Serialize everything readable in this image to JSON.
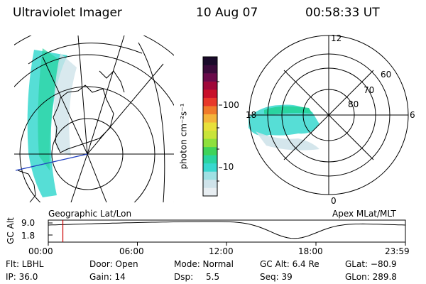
{
  "header": {
    "title": "Ultraviolet Imager",
    "date": "10 Aug 07",
    "time": "00:58:33 UT"
  },
  "panels": {
    "left_label": "Geographic Lat/Lon",
    "right_label": "Apex MLat/MLT",
    "polar_labels": [
      "12",
      "60",
      "70",
      "80",
      "18",
      "6",
      "0"
    ]
  },
  "colorbar": {
    "unit_label": "photon cm⁻²s⁻¹",
    "ticks": [
      "100",
      "10"
    ],
    "colors": [
      "#e8eef2",
      "#cfe3ea",
      "#9fe0e3",
      "#38d8cf",
      "#2ad4a0",
      "#3fd35a",
      "#8ee03c",
      "#c8e43a",
      "#e8e03a",
      "#f4b43a",
      "#f07a2a",
      "#e8382a",
      "#c8102a",
      "#a0083a",
      "#6a0a4a",
      "#3a0a3a",
      "#1a0a2a"
    ]
  },
  "altitude_plot": {
    "ylabel": "GC Alt",
    "yticks": [
      "9.0",
      "1.8"
    ],
    "xticks": [
      "00:00",
      "06:00",
      "12:00",
      "18:00",
      "23:59"
    ],
    "marker_time_hours": 0.98
  },
  "footer": {
    "row1": [
      "Flt: LBHL",
      "Door: Open",
      "Mode: Normal",
      "GC Alt: 6.4 Re",
      "GLat: −80.9"
    ],
    "row2": [
      "IP: 36.0",
      "Gain: 14",
      "Dsp:",
      "5.5",
      "Seq: 39",
      "GLon: 289.8"
    ]
  },
  "accent": {
    "marker": "#cc0000",
    "blue_line": "#2040c0"
  }
}
